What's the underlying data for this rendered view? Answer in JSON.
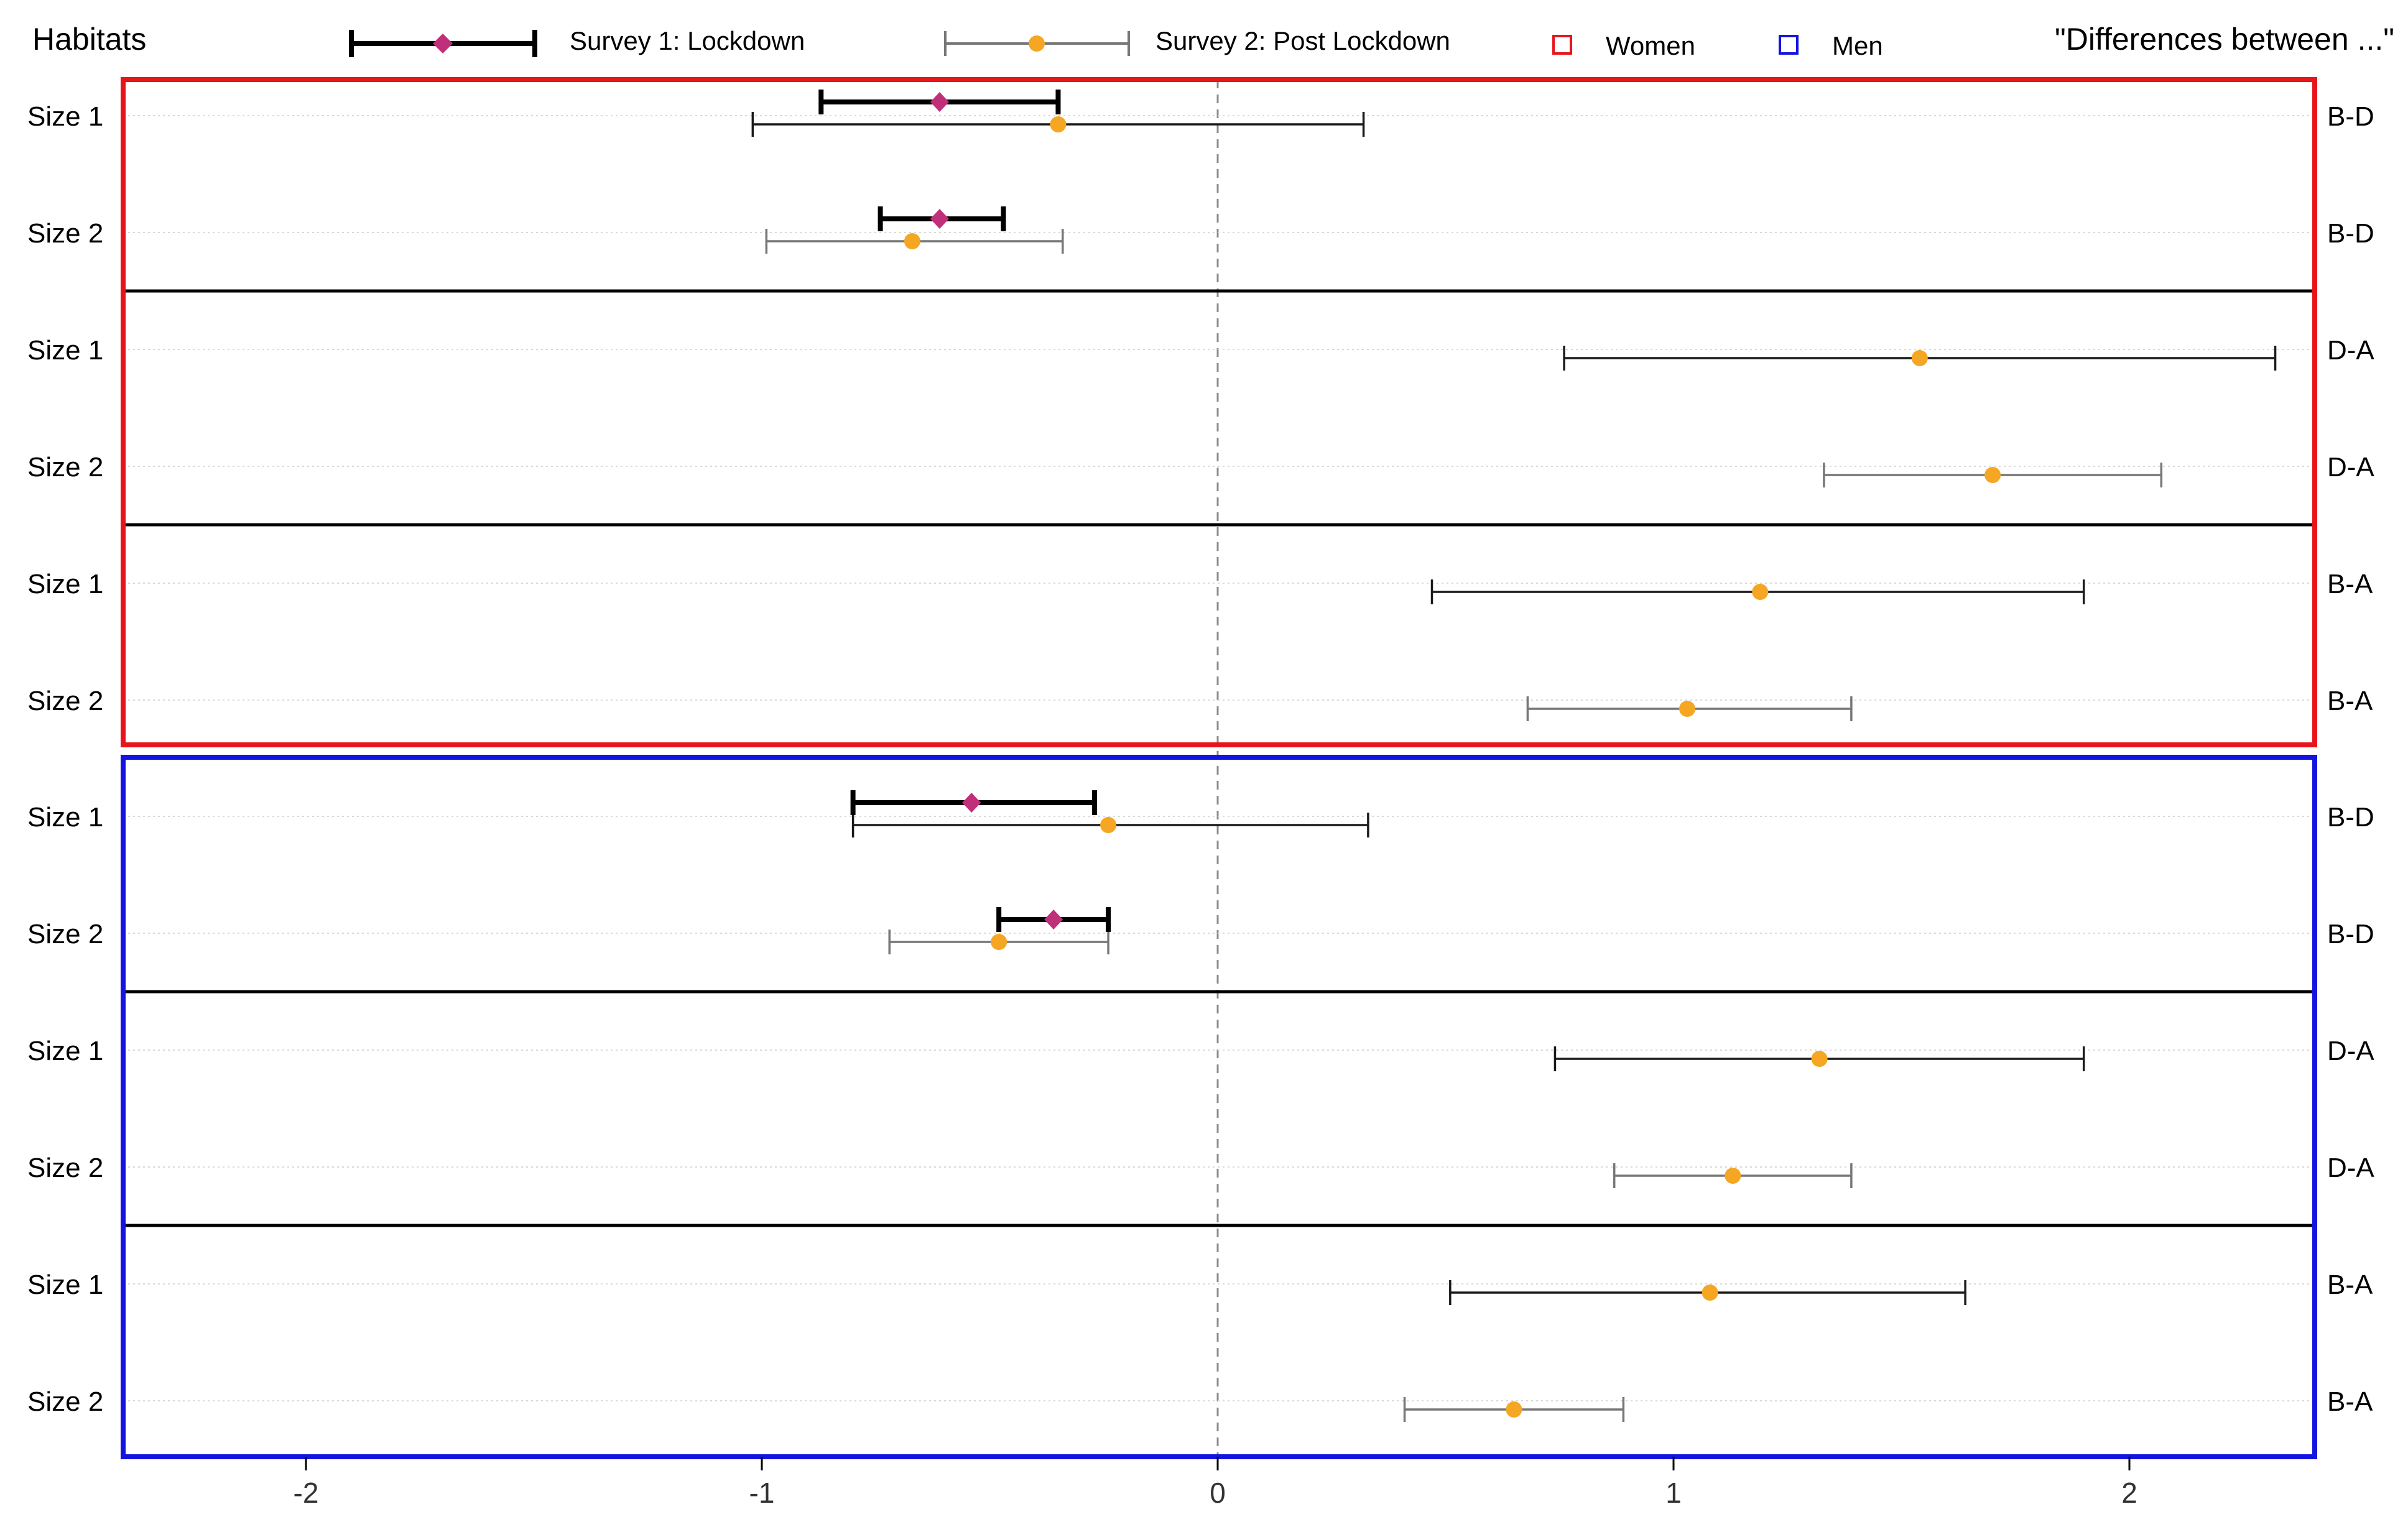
{
  "chart_data": {
    "type": "errorbar-forest",
    "title": "\"Differences between ...\"",
    "legend": {
      "heading": "Habitats",
      "survey1": "Survey 1: Lockdown",
      "survey2": "Survey 2: Post Lockdown",
      "women": "Women",
      "men": "Men",
      "placement": "top"
    },
    "colors": {
      "women_box": "#e8141c",
      "men_box": "#1414e0",
      "survey1_marker": "#c0307a",
      "survey2_marker": "#f5a623",
      "survey1_bar": "#000000",
      "survey2_bar_dark": "#1a1a1a",
      "survey2_bar_gray": "#777777",
      "zero_line": "#8c8c8c",
      "gridline": "#d9d9d9",
      "separator": "#000000"
    },
    "xlim": [
      -2.4,
      2.4
    ],
    "xticks": [
      -2,
      -1,
      0,
      1,
      2
    ],
    "xtick_labels": [
      "-2",
      "-1",
      "0",
      "1",
      "2"
    ],
    "groups": [
      {
        "name": "Women",
        "rows": [
          {
            "label": "Size 1",
            "comparison": "B-D",
            "s1": {
              "est": -0.61,
              "lo": -0.87,
              "hi": -0.35
            },
            "s2": {
              "est": -0.35,
              "lo": -1.02,
              "hi": 0.32,
              "style": "dark"
            }
          },
          {
            "label": "Size 2",
            "comparison": "B-D",
            "s1": {
              "est": -0.61,
              "lo": -0.74,
              "hi": -0.47
            },
            "s2": {
              "est": -0.67,
              "lo": -0.99,
              "hi": -0.34,
              "style": "gray"
            }
          },
          {
            "label": "Size 1",
            "comparison": "D-A",
            "s1": null,
            "s2": {
              "est": 1.54,
              "lo": 0.76,
              "hi": 2.32,
              "style": "dark"
            }
          },
          {
            "label": "Size 2",
            "comparison": "D-A",
            "s1": null,
            "s2": {
              "est": 1.7,
              "lo": 1.33,
              "hi": 2.07,
              "style": "gray"
            }
          },
          {
            "label": "Size 1",
            "comparison": "B-A",
            "s1": null,
            "s2": {
              "est": 1.19,
              "lo": 0.47,
              "hi": 1.9,
              "style": "dark"
            }
          },
          {
            "label": "Size 2",
            "comparison": "B-A",
            "s1": null,
            "s2": {
              "est": 1.03,
              "lo": 0.68,
              "hi": 1.39,
              "style": "gray"
            }
          }
        ]
      },
      {
        "name": "Men",
        "rows": [
          {
            "label": "Size 1",
            "comparison": "B-D",
            "s1": {
              "est": -0.54,
              "lo": -0.8,
              "hi": -0.27
            },
            "s2": {
              "est": -0.24,
              "lo": -0.8,
              "hi": 0.33,
              "style": "dark"
            }
          },
          {
            "label": "Size 2",
            "comparison": "B-D",
            "s1": {
              "est": -0.36,
              "lo": -0.48,
              "hi": -0.24
            },
            "s2": {
              "est": -0.48,
              "lo": -0.72,
              "hi": -0.24,
              "style": "gray"
            }
          },
          {
            "label": "Size 1",
            "comparison": "D-A",
            "s1": null,
            "s2": {
              "est": 1.32,
              "lo": 0.74,
              "hi": 1.9,
              "style": "dark"
            }
          },
          {
            "label": "Size 2",
            "comparison": "D-A",
            "s1": null,
            "s2": {
              "est": 1.13,
              "lo": 0.87,
              "hi": 1.39,
              "style": "gray"
            }
          },
          {
            "label": "Size 1",
            "comparison": "B-A",
            "s1": null,
            "s2": {
              "est": 1.08,
              "lo": 0.51,
              "hi": 1.64,
              "style": "dark"
            }
          },
          {
            "label": "Size 2",
            "comparison": "B-A",
            "s1": null,
            "s2": {
              "est": 0.65,
              "lo": 0.41,
              "hi": 0.89,
              "style": "gray"
            }
          }
        ]
      }
    ]
  }
}
